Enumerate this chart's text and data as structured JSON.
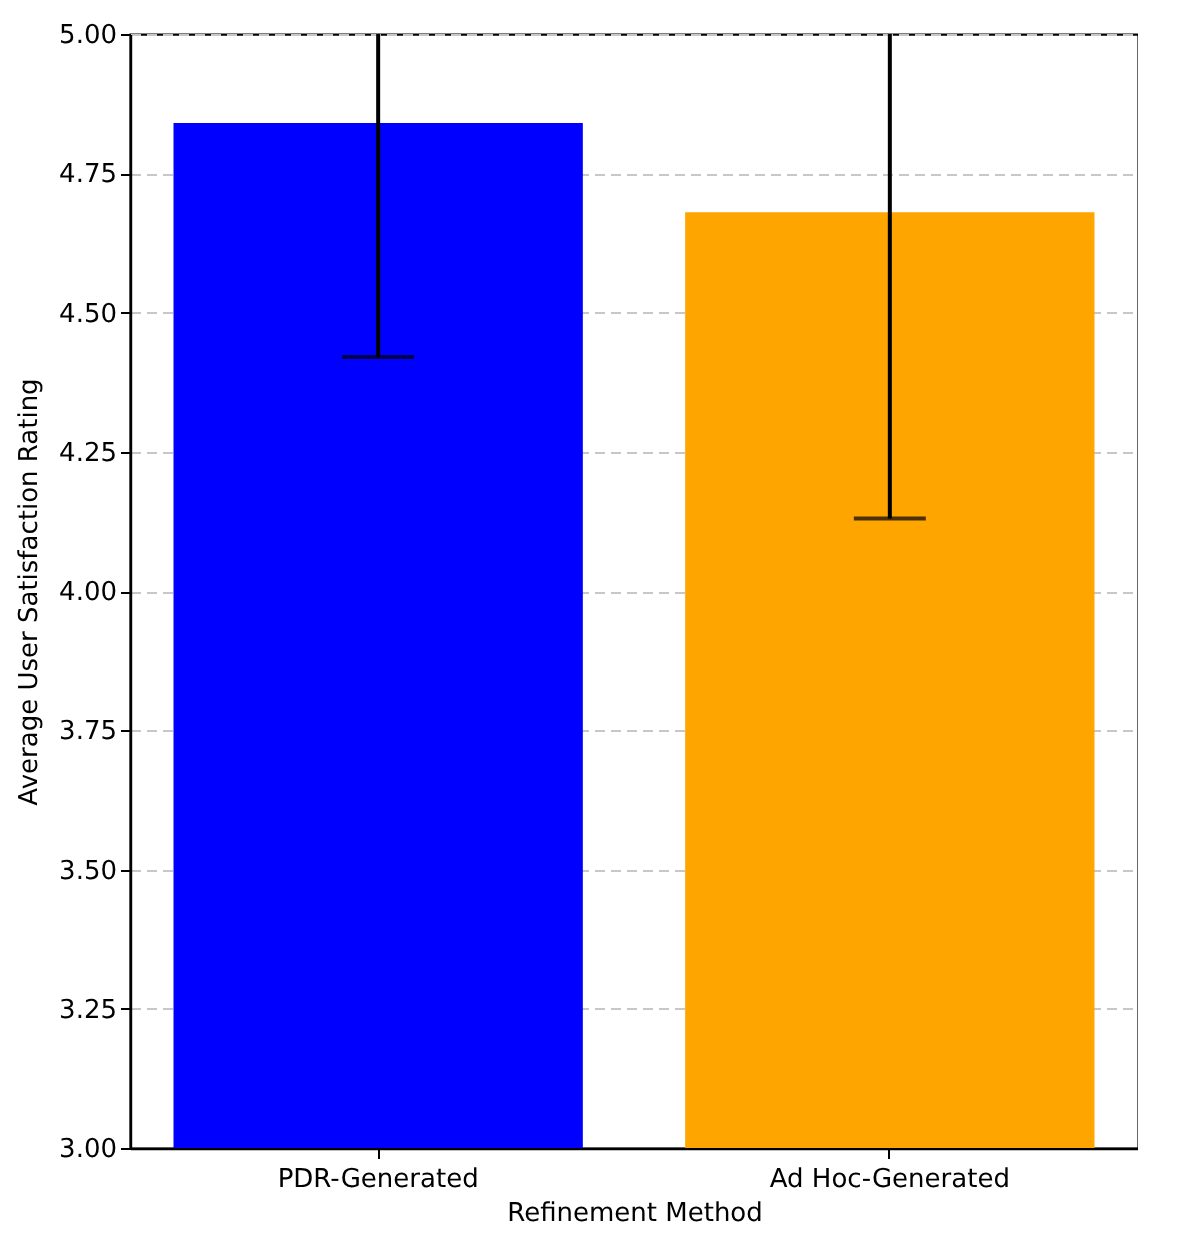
{
  "chart_data": {
    "type": "bar",
    "xlabel": "Refinement Method",
    "ylabel": "Average User Satisfaction Rating",
    "categories": [
      "PDR-Generated",
      "Ad Hoc-Generated"
    ],
    "values": [
      4.84,
      4.68
    ],
    "colors": [
      "#0000ff",
      "#ffa500"
    ],
    "errors": [
      [
        4.42,
        5.0
      ],
      [
        4.13,
        5.0
      ]
    ],
    "ylim": [
      3.0,
      5.0
    ],
    "yticks": [
      {
        "value": 3.0,
        "label": "3.00"
      },
      {
        "value": 3.25,
        "label": "3.25"
      },
      {
        "value": 3.5,
        "label": "3.50"
      },
      {
        "value": 3.75,
        "label": "3.75"
      },
      {
        "value": 4.0,
        "label": "4.00"
      },
      {
        "value": 4.25,
        "label": "4.25"
      },
      {
        "value": 4.5,
        "label": "4.50"
      },
      {
        "value": 4.75,
        "label": "4.75"
      },
      {
        "value": 5.0,
        "label": "5.00"
      }
    ],
    "grid": "y"
  }
}
